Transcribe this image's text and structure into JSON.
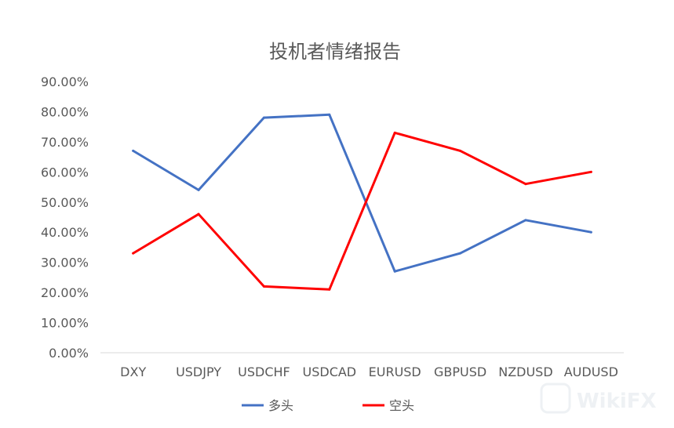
{
  "chart_data": {
    "type": "line",
    "title": "投机者情绪报告",
    "xlabel": "",
    "ylabel": "",
    "categories": [
      "DXY",
      "USDJPY",
      "USDCHF",
      "USDCAD",
      "EURUSD",
      "GBPUSD",
      "NZDUSD",
      "AUDUSD"
    ],
    "series": [
      {
        "name": "多头",
        "color": "#4472C4",
        "values": [
          67,
          54,
          78,
          79,
          27,
          33,
          44,
          40
        ]
      },
      {
        "name": "空头",
        "color": "#FF0000",
        "values": [
          33,
          46,
          22,
          21,
          73,
          67,
          56,
          60
        ]
      }
    ],
    "ylim": [
      0,
      90
    ],
    "yticks": [
      "0.00%",
      "10.00%",
      "20.00%",
      "30.00%",
      "40.00%",
      "50.00%",
      "60.00%",
      "70.00%",
      "80.00%",
      "90.00%"
    ],
    "grid": false,
    "legend_position": "bottom"
  },
  "watermark": {
    "text": "WikiFX"
  }
}
